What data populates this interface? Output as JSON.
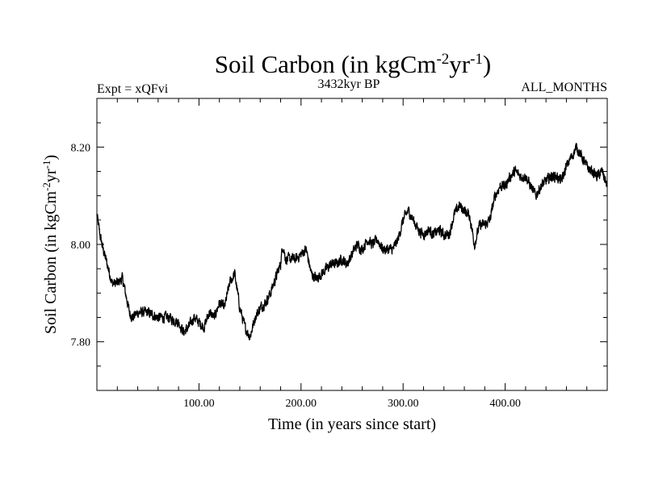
{
  "colors": {
    "background": "#ffffff",
    "line": "#000000",
    "frame": "#000000"
  },
  "chart_data": {
    "type": "line",
    "title": "Soil Carbon (in kgCm",
    "title_sup1": "-2",
    "title_mid": "yr",
    "title_sup2": "-1",
    "title_end": ")",
    "subtitle_left": "Expt = xQFvi",
    "subtitle_center": "3432kyr BP",
    "subtitle_right": "ALL_MONTHS",
    "xlabel": "Time (in years since start)",
    "ylabel": "Soil Carbon (in kgCm",
    "ylabel_sup1": "-2",
    "ylabel_mid": "yr",
    "ylabel_sup2": "-1",
    "ylabel_end": ")",
    "xlim": [
      0,
      500
    ],
    "ylim": [
      7.7,
      8.3
    ],
    "x_ticks": [
      {
        "value": 100,
        "label": "100.00"
      },
      {
        "value": 200,
        "label": "200.00"
      },
      {
        "value": 300,
        "label": "300.00"
      },
      {
        "value": 400,
        "label": "400.00"
      }
    ],
    "y_ticks": [
      {
        "value": 7.8,
        "label": "7.80"
      },
      {
        "value": 8.0,
        "label": "8.00"
      },
      {
        "value": 8.2,
        "label": "8.20"
      }
    ],
    "x_minor_step": 20,
    "y_minor_step": 0.05,
    "grid": false,
    "series": [
      {
        "name": "Soil Carbon",
        "noise_amplitude": 0.009,
        "x": [
          0,
          3,
          6,
          10,
          15,
          20,
          25,
          28,
          32,
          35,
          40,
          50,
          60,
          70,
          80,
          85,
          90,
          95,
          100,
          105,
          110,
          115,
          120,
          125,
          130,
          135,
          140,
          145,
          150,
          155,
          160,
          165,
          170,
          175,
          180,
          182,
          185,
          190,
          195,
          200,
          205,
          210,
          215,
          220,
          225,
          230,
          235,
          240,
          245,
          250,
          255,
          260,
          265,
          270,
          275,
          280,
          285,
          290,
          295,
          300,
          305,
          310,
          315,
          320,
          325,
          330,
          335,
          340,
          345,
          350,
          355,
          360,
          365,
          370,
          375,
          380,
          385,
          390,
          395,
          400,
          405,
          410,
          415,
          420,
          425,
          430,
          435,
          440,
          445,
          450,
          455,
          460,
          465,
          470,
          475,
          480,
          485,
          490,
          495,
          500
        ],
        "values": [
          8.06,
          8.02,
          7.99,
          7.96,
          7.92,
          7.92,
          7.93,
          7.9,
          7.86,
          7.85,
          7.86,
          7.86,
          7.85,
          7.85,
          7.84,
          7.82,
          7.83,
          7.85,
          7.84,
          7.83,
          7.86,
          7.85,
          7.88,
          7.87,
          7.92,
          7.94,
          7.87,
          7.83,
          7.81,
          7.85,
          7.87,
          7.88,
          7.9,
          7.93,
          7.96,
          8.0,
          7.97,
          7.97,
          7.97,
          7.98,
          7.99,
          7.94,
          7.93,
          7.94,
          7.95,
          7.96,
          7.96,
          7.97,
          7.96,
          7.98,
          8.0,
          7.99,
          8.01,
          8.0,
          8.01,
          7.99,
          7.99,
          7.99,
          8.01,
          8.05,
          8.07,
          8.05,
          8.03,
          8.02,
          8.03,
          8.02,
          8.03,
          8.02,
          8.02,
          8.06,
          8.08,
          8.07,
          8.06,
          8.0,
          8.04,
          8.04,
          8.05,
          8.1,
          8.12,
          8.12,
          8.14,
          8.15,
          8.14,
          8.14,
          8.12,
          8.1,
          8.12,
          8.13,
          8.14,
          8.14,
          8.13,
          8.16,
          8.18,
          8.2,
          8.18,
          8.16,
          8.15,
          8.14,
          8.15,
          8.12
        ]
      }
    ]
  }
}
